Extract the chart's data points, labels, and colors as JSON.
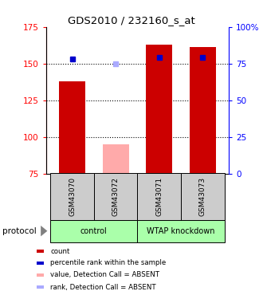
{
  "title": "GDS2010 / 232160_s_at",
  "samples": [
    "GSM43070",
    "GSM43072",
    "GSM43071",
    "GSM43073"
  ],
  "bar_values": [
    138,
    95,
    163,
    161
  ],
  "bar_colors": [
    "#cc0000",
    "#ffaaaa",
    "#cc0000",
    "#cc0000"
  ],
  "rank_values": [
    78,
    75,
    79,
    79
  ],
  "rank_colors": [
    "#0000cc",
    "#aaaaff",
    "#0000cc",
    "#0000cc"
  ],
  "ylim_left": [
    75,
    175
  ],
  "ylim_right": [
    0,
    100
  ],
  "yticks_left": [
    75,
    100,
    125,
    150,
    175
  ],
  "yticks_right": [
    0,
    25,
    50,
    75,
    100
  ],
  "ytick_right_labels": [
    "0",
    "25",
    "50",
    "75",
    "100%"
  ],
  "groups": [
    {
      "label": "control",
      "indices": [
        0,
        1
      ]
    },
    {
      "label": "WTAP knockdown",
      "indices": [
        2,
        3
      ]
    }
  ],
  "group_color": "#aaffaa",
  "protocol_label": "protocol",
  "sample_bg_color": "#cccccc",
  "legend_items": [
    {
      "color": "#cc0000",
      "label": "count"
    },
    {
      "color": "#0000cc",
      "label": "percentile rank within the sample"
    },
    {
      "color": "#ffaaaa",
      "label": "value, Detection Call = ABSENT"
    },
    {
      "color": "#aaaaff",
      "label": "rank, Detection Call = ABSENT"
    }
  ],
  "bar_width": 0.6,
  "bar_bottom": 75,
  "gridlines": [
    100,
    125,
    150
  ]
}
